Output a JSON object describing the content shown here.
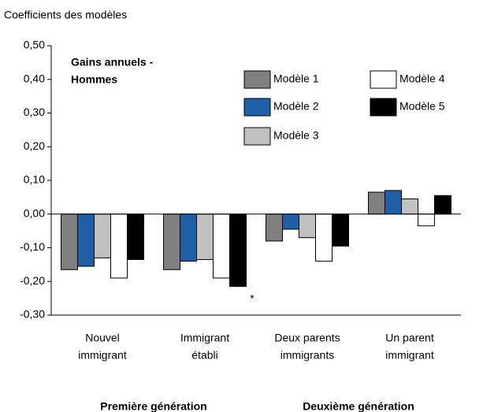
{
  "chart_data": {
    "type": "bar",
    "y_label": "Coefficients  des modèles",
    "inner_title": [
      "Gains annuels -",
      "Hommes"
    ],
    "categories": [
      [
        "Nouvel",
        "immigrant"
      ],
      [
        "Immigrant",
        "établi"
      ],
      [
        "Deux parents",
        "immigrants"
      ],
      [
        "Un parent",
        "immigrant"
      ]
    ],
    "group_labels": [
      "Première génération",
      "Deuxième génération"
    ],
    "annotations": [
      "*"
    ],
    "series": [
      {
        "name": "Modèle 1",
        "color": "#808080",
        "values": [
          -0.165,
          -0.165,
          -0.08,
          0.065
        ]
      },
      {
        "name": "Modèle 2",
        "color": "#1f5fa8",
        "values": [
          -0.155,
          -0.14,
          -0.045,
          0.07
        ]
      },
      {
        "name": "Modèle 3",
        "color": "#c0c0c0",
        "values": [
          -0.13,
          -0.135,
          -0.07,
          0.045
        ]
      },
      {
        "name": "Modèle 4",
        "color": "#ffffff",
        "values": [
          -0.19,
          -0.19,
          -0.14,
          -0.035
        ]
      },
      {
        "name": "Modèle 5",
        "color": "#000000",
        "values": [
          -0.135,
          -0.215,
          -0.095,
          0.055
        ]
      }
    ],
    "ylim": [
      -0.3,
      0.5
    ],
    "yticks": [
      {
        "value": 0.5,
        "label": "0,50"
      },
      {
        "value": 0.4,
        "label": "0,40"
      },
      {
        "value": 0.3,
        "label": "0,30"
      },
      {
        "value": 0.2,
        "label": "0,20"
      },
      {
        "value": 0.1,
        "label": "0,10"
      },
      {
        "value": 0,
        "label": "0,00"
      },
      {
        "value": -0.1,
        "label": "-0,10"
      },
      {
        "value": -0.2,
        "label": "-0,20"
      },
      {
        "value": -0.3,
        "label": "-0,30"
      }
    ]
  }
}
